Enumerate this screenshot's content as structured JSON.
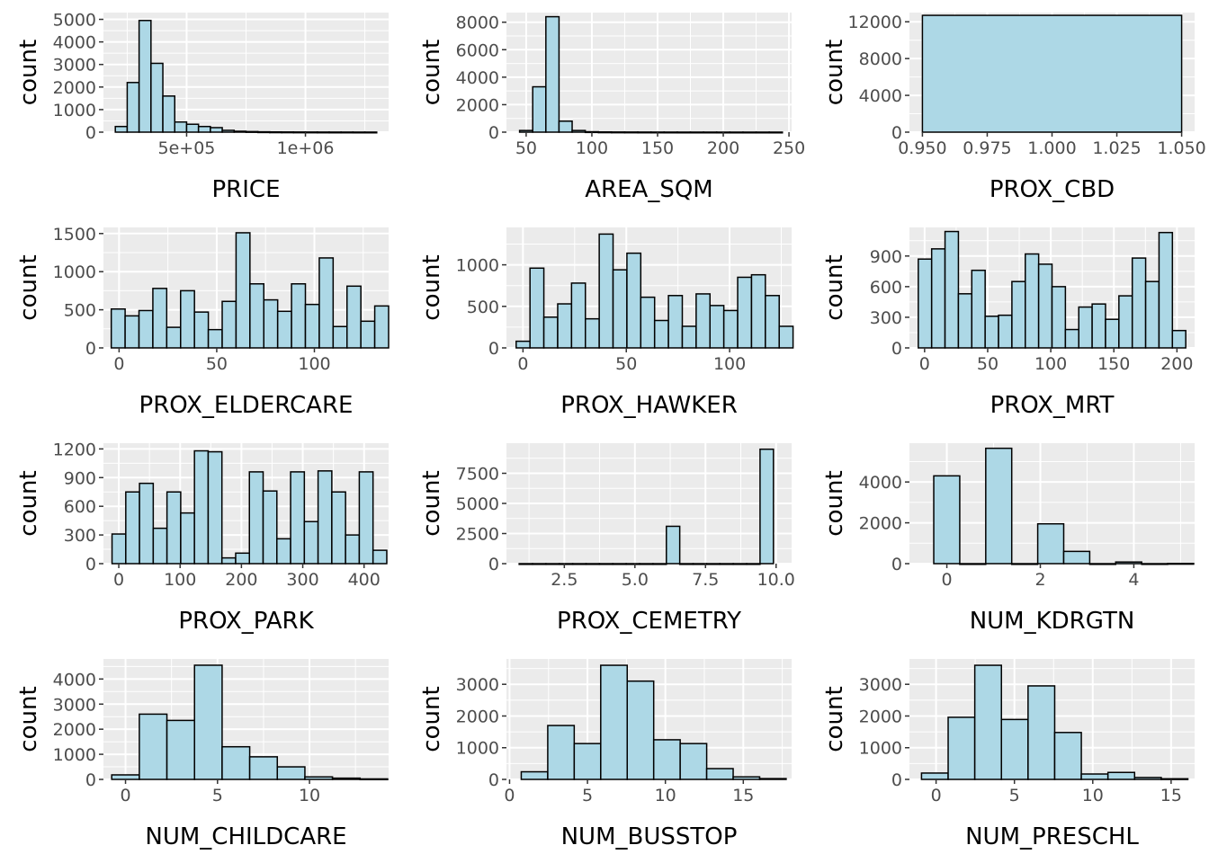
{
  "style": {
    "panel_background": "#ebebeb",
    "grid_major": "#ffffff",
    "bar_fill": "#add8e6",
    "bar_stroke": "#000000",
    "tick_color": "#4d4d4d"
  },
  "chart_data": [
    {
      "type": "bar",
      "xlabel": "PRICE",
      "ylabel": "count",
      "xlim": [
        150000,
        1350000
      ],
      "ylim": [
        0,
        5300
      ],
      "xticks": [
        500000,
        1000000
      ],
      "xtick_labels": [
        "5e+05",
        "1e+06"
      ],
      "yticks": [
        0,
        1000,
        2000,
        3000,
        4000,
        5000
      ],
      "ytick_labels": [
        "0",
        "1000",
        "2000",
        "3000",
        "4000",
        "5000"
      ],
      "bin_width": 50000,
      "bins_start": 200000,
      "values": [
        250,
        2200,
        4950,
        3050,
        1600,
        450,
        350,
        250,
        200,
        80,
        40,
        25,
        15,
        10,
        8,
        6,
        5,
        4,
        3,
        3,
        2,
        2
      ]
    },
    {
      "type": "bar",
      "xlabel": "AREA_SQM",
      "ylabel": "count",
      "xlim": [
        35,
        252
      ],
      "ylim": [
        0,
        8700
      ],
      "xticks": [
        50,
        100,
        150,
        200,
        250
      ],
      "xtick_labels": [
        "50",
        "100",
        "150",
        "200",
        "250"
      ],
      "yticks": [
        0,
        2000,
        4000,
        6000,
        8000
      ],
      "ytick_labels": [
        "0",
        "2000",
        "4000",
        "6000",
        "8000"
      ],
      "bin_width": 10,
      "bins_start": 45,
      "values": [
        120,
        3300,
        8400,
        800,
        120,
        30,
        15,
        10,
        8,
        6,
        5,
        4,
        3,
        3,
        3,
        2,
        2,
        2,
        2,
        2
      ]
    },
    {
      "type": "bar",
      "xlabel": "PROX_CBD",
      "ylabel": "count",
      "xlim": [
        0.945,
        1.055
      ],
      "ylim": [
        0,
        13000
      ],
      "xticks": [
        0.95,
        0.975,
        1.0,
        1.025,
        1.05
      ],
      "xtick_labels": [
        "0.950",
        "0.975",
        "1.000",
        "1.025",
        "1.050"
      ],
      "yticks": [
        0,
        4000,
        8000,
        12000
      ],
      "ytick_labels": [
        "0",
        "4000",
        "8000",
        "12000"
      ],
      "bin_width": 0.1,
      "bins_start": 0.95,
      "values": [
        12700
      ]
    },
    {
      "type": "bar",
      "xlabel": "PROX_ELDERCARE",
      "ylabel": "count",
      "xlim": [
        -8,
        138
      ],
      "ylim": [
        0,
        1580
      ],
      "xticks": [
        0,
        50,
        100
      ],
      "xtick_labels": [
        "0",
        "50",
        "100"
      ],
      "yticks": [
        0,
        500,
        1000,
        1500
      ],
      "ytick_labels": [
        "0",
        "500",
        "1000",
        "1500"
      ],
      "bin_width": 7.1,
      "bins_start": -4,
      "values": [
        510,
        420,
        490,
        780,
        270,
        750,
        470,
        240,
        610,
        1510,
        840,
        630,
        480,
        840,
        570,
        1180,
        280,
        810,
        350,
        550
      ]
    },
    {
      "type": "bar",
      "xlabel": "PROX_HAWKER",
      "ylabel": "count",
      "xlim": [
        -8,
        130
      ],
      "ylim": [
        0,
        1450
      ],
      "xticks": [
        0,
        50,
        100
      ],
      "xtick_labels": [
        "0",
        "50",
        "100"
      ],
      "yticks": [
        0,
        500,
        1000
      ],
      "ytick_labels": [
        "0",
        "500",
        "1000"
      ],
      "bin_width": 6.7,
      "bins_start": -3.3,
      "values": [
        80,
        960,
        370,
        530,
        780,
        350,
        1370,
        940,
        1140,
        610,
        330,
        630,
        260,
        650,
        510,
        450,
        850,
        880,
        630,
        260
      ]
    },
    {
      "type": "bar",
      "xlabel": "PROX_MRT",
      "ylabel": "count",
      "xlim": [
        -12,
        214
      ],
      "ylim": [
        0,
        1180
      ],
      "xticks": [
        0,
        50,
        100,
        150,
        200
      ],
      "xtick_labels": [
        "0",
        "50",
        "100",
        "150",
        "200"
      ],
      "yticks": [
        0,
        300,
        600,
        900
      ],
      "ytick_labels": [
        "0",
        "300",
        "600",
        "900"
      ],
      "bin_width": 10.6,
      "bins_start": -5,
      "values": [
        870,
        970,
        1140,
        530,
        760,
        310,
        320,
        650,
        920,
        820,
        600,
        180,
        400,
        430,
        280,
        510,
        880,
        650,
        1130,
        170
      ]
    },
    {
      "type": "bar",
      "xlabel": "PROX_PARK",
      "ylabel": "count",
      "xlim": [
        -25,
        440
      ],
      "ylim": [
        0,
        1260
      ],
      "xticks": [
        0,
        100,
        200,
        300,
        400
      ],
      "xtick_labels": [
        "0",
        "100",
        "200",
        "300",
        "400"
      ],
      "yticks": [
        0,
        300,
        600,
        900,
        1200
      ],
      "ytick_labels": [
        "0",
        "300",
        "600",
        "900",
        "1200"
      ],
      "bin_width": 22.4,
      "bins_start": -11,
      "values": [
        310,
        750,
        840,
        370,
        750,
        530,
        1180,
        1170,
        60,
        110,
        960,
        760,
        260,
        960,
        440,
        970,
        750,
        300,
        960,
        140
      ]
    },
    {
      "type": "bar",
      "xlabel": "PROX_CEMETRY",
      "ylabel": "count",
      "xlim": [
        0.45,
        10.55
      ],
      "ylim": [
        0,
        10000
      ],
      "xticks": [
        2.5,
        5.0,
        7.5,
        10.0
      ],
      "xtick_labels": [
        "2.5",
        "5.0",
        "7.5",
        "10.0"
      ],
      "yticks": [
        0,
        2500,
        5000,
        7500
      ],
      "ytick_labels": [
        "0",
        "2500",
        "5000",
        "7500"
      ],
      "bin_width": 0.474,
      "bins_start": 0.9,
      "values": [
        0,
        0,
        0,
        0,
        0,
        0,
        0,
        0,
        0,
        0,
        0,
        3100,
        0,
        0,
        0,
        0,
        0,
        0,
        9500
      ]
    },
    {
      "type": "bar",
      "xlabel": "NUM_KDRGTN",
      "ylabel": "count",
      "xlim": [
        -0.8,
        5.3
      ],
      "ylim": [
        0,
        5900
      ],
      "xticks": [
        0,
        2,
        4
      ],
      "xtick_labels": [
        "0",
        "2",
        "4"
      ],
      "yticks": [
        0,
        2000,
        4000
      ],
      "ytick_labels": [
        "0",
        "2000",
        "4000"
      ],
      "bin_width": 0.556,
      "bins_start": -0.28,
      "values": [
        4300,
        0,
        5650,
        0,
        1950,
        600,
        0,
        80,
        0,
        10
      ]
    },
    {
      "type": "bar",
      "xlabel": "NUM_CHILDCARE",
      "ylabel": "count",
      "xlim": [
        -1.2,
        14.3
      ],
      "ylim": [
        0,
        4800
      ],
      "xticks": [
        0,
        5,
        10
      ],
      "xtick_labels": [
        "0",
        "5",
        "10"
      ],
      "yticks": [
        0,
        1000,
        2000,
        3000,
        4000
      ],
      "ytick_labels": [
        "0",
        "1000",
        "2000",
        "3000",
        "4000"
      ],
      "bin_width": 1.5,
      "bins_start": -0.75,
      "values": [
        180,
        2600,
        2350,
        4550,
        1300,
        900,
        500,
        100,
        50,
        20
      ]
    },
    {
      "type": "bar",
      "xlabel": "NUM_BUSSTOP",
      "ylabel": "count",
      "xlim": [
        -0.2,
        18.1
      ],
      "ylim": [
        0,
        3800
      ],
      "xticks": [
        0,
        5,
        10,
        15
      ],
      "xtick_labels": [
        "0",
        "5",
        "10",
        "15"
      ],
      "yticks": [
        0,
        1000,
        2000,
        3000
      ],
      "ytick_labels": [
        "0",
        "1000",
        "2000",
        "3000"
      ],
      "bin_width": 1.7,
      "bins_start": 0.75,
      "values": [
        240,
        1700,
        1130,
        3600,
        3100,
        1250,
        1130,
        340,
        80,
        25
      ]
    },
    {
      "type": "bar",
      "xlabel": "NUM_PRESCHL",
      "ylabel": "count",
      "xlim": [
        -1.7,
        16.5
      ],
      "ylim": [
        0,
        3800
      ],
      "xticks": [
        0,
        5,
        10,
        15
      ],
      "xtick_labels": [
        "0",
        "5",
        "10",
        "15"
      ],
      "yticks": [
        0,
        1000,
        2000,
        3000
      ],
      "ytick_labels": [
        "0",
        "1000",
        "2000",
        "3000"
      ],
      "bin_width": 1.7,
      "bins_start": -0.93,
      "values": [
        200,
        1960,
        3600,
        1890,
        2950,
        1480,
        170,
        220,
        60,
        20
      ]
    }
  ]
}
